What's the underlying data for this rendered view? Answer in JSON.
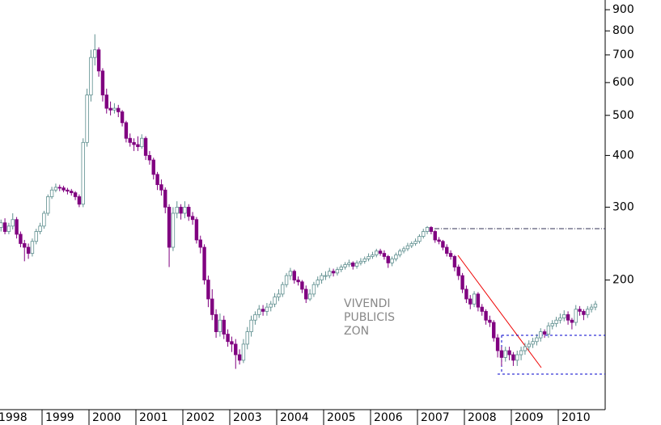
{
  "chart_data": {
    "type": "candlestick",
    "log_scale": true,
    "ylim": [
      99,
      950
    ],
    "yticks": [
      900,
      800,
      700,
      600,
      500,
      400,
      300,
      200
    ],
    "up_color": "#5f8f8f",
    "down_color": "#800080",
    "annotations": [
      "VIVENDI",
      "PUBLICIS",
      "ZON"
    ],
    "categories": [
      "1998",
      null,
      null,
      null,
      null,
      null,
      null,
      null,
      null,
      null,
      null,
      null,
      "1999",
      null,
      null,
      null,
      null,
      null,
      null,
      null,
      null,
      null,
      null,
      null,
      "2000",
      null,
      null,
      null,
      null,
      null,
      null,
      null,
      null,
      null,
      null,
      null,
      "2001",
      null,
      null,
      null,
      null,
      null,
      null,
      null,
      null,
      null,
      null,
      null,
      "2002",
      null,
      null,
      null,
      null,
      null,
      null,
      null,
      null,
      null,
      null,
      null,
      "2003",
      null,
      null,
      null,
      null,
      null,
      null,
      null,
      null,
      null,
      null,
      null,
      "2004",
      null,
      null,
      null,
      null,
      null,
      null,
      null,
      null,
      null,
      null,
      null,
      "2005",
      null,
      null,
      null,
      null,
      null,
      null,
      null,
      null,
      null,
      null,
      null,
      "2006",
      null,
      null,
      null,
      null,
      null,
      null,
      null,
      null,
      null,
      null,
      null,
      "2007",
      null,
      null,
      null,
      null,
      null,
      null,
      null,
      null,
      null,
      null,
      null,
      "2008",
      null,
      null,
      null,
      null,
      null,
      null,
      null,
      null,
      null,
      null,
      null,
      "2009",
      null,
      null,
      null,
      null,
      null,
      null,
      null,
      null,
      null,
      null,
      null,
      "2010",
      null,
      null,
      null,
      null,
      null,
      null,
      null,
      null,
      null
    ],
    "ohlc": [
      [
        265,
        285,
        260,
        268
      ],
      [
        268,
        280,
        262,
        275
      ],
      [
        275,
        282,
        258,
        262
      ],
      [
        262,
        275,
        258,
        270
      ],
      [
        270,
        290,
        265,
        280
      ],
      [
        280,
        284,
        252,
        258
      ],
      [
        258,
        262,
        240,
        245
      ],
      [
        245,
        250,
        222,
        240
      ],
      [
        240,
        245,
        225,
        232
      ],
      [
        232,
        252,
        228,
        248
      ],
      [
        248,
        266,
        244,
        262
      ],
      [
        262,
        275,
        258,
        270
      ],
      [
        270,
        294,
        266,
        290
      ],
      [
        290,
        322,
        286,
        318
      ],
      [
        318,
        336,
        314,
        330
      ],
      [
        330,
        342,
        326,
        335
      ],
      [
        335,
        340,
        328,
        334
      ],
      [
        334,
        338,
        326,
        330
      ],
      [
        330,
        334,
        322,
        328
      ],
      [
        328,
        332,
        320,
        325
      ],
      [
        325,
        328,
        312,
        318
      ],
      [
        318,
        322,
        300,
        305
      ],
      [
        305,
        440,
        300,
        430
      ],
      [
        430,
        580,
        420,
        560
      ],
      [
        560,
        720,
        540,
        690
      ],
      [
        690,
        785,
        660,
        720
      ],
      [
        720,
        730,
        620,
        640
      ],
      [
        640,
        650,
        540,
        560
      ],
      [
        560,
        580,
        505,
        520
      ],
      [
        520,
        540,
        500,
        515
      ],
      [
        515,
        535,
        505,
        520
      ],
      [
        520,
        530,
        495,
        510
      ],
      [
        510,
        515,
        470,
        480
      ],
      [
        480,
        485,
        430,
        440
      ],
      [
        440,
        452,
        420,
        430
      ],
      [
        430,
        440,
        410,
        425
      ],
      [
        425,
        445,
        410,
        420
      ],
      [
        420,
        450,
        415,
        440
      ],
      [
        440,
        445,
        390,
        400
      ],
      [
        400,
        410,
        380,
        390
      ],
      [
        390,
        395,
        350,
        360
      ],
      [
        360,
        365,
        330,
        340
      ],
      [
        340,
        350,
        320,
        330
      ],
      [
        330,
        335,
        290,
        300
      ],
      [
        300,
        305,
        215,
        240
      ],
      [
        240,
        300,
        235,
        290
      ],
      [
        290,
        310,
        282,
        300
      ],
      [
        300,
        305,
        280,
        290
      ],
      [
        290,
        310,
        282,
        300
      ],
      [
        300,
        305,
        278,
        285
      ],
      [
        285,
        292,
        272,
        280
      ],
      [
        280,
        284,
        245,
        250
      ],
      [
        250,
        256,
        232,
        240
      ],
      [
        240,
        244,
        195,
        200
      ],
      [
        200,
        205,
        172,
        180
      ],
      [
        180,
        190,
        160,
        165
      ],
      [
        165,
        170,
        145,
        150
      ],
      [
        150,
        166,
        146,
        160
      ],
      [
        160,
        164,
        144,
        148
      ],
      [
        148,
        152,
        138,
        142
      ],
      [
        142,
        146,
        134,
        140
      ],
      [
        140,
        144,
        122,
        132
      ],
      [
        132,
        136,
        125,
        128
      ],
      [
        128,
        144,
        126,
        140
      ],
      [
        140,
        154,
        136,
        150
      ],
      [
        150,
        164,
        146,
        160
      ],
      [
        160,
        168,
        156,
        165
      ],
      [
        165,
        174,
        162,
        170
      ],
      [
        170,
        174,
        164,
        168
      ],
      [
        168,
        176,
        164,
        172
      ],
      [
        172,
        178,
        168,
        175
      ],
      [
        175,
        186,
        172,
        182
      ],
      [
        182,
        190,
        178,
        185
      ],
      [
        185,
        198,
        182,
        195
      ],
      [
        195,
        208,
        192,
        205
      ],
      [
        205,
        214,
        200,
        210
      ],
      [
        210,
        212,
        196,
        200
      ],
      [
        200,
        204,
        194,
        198
      ],
      [
        198,
        200,
        186,
        190
      ],
      [
        190,
        194,
        176,
        180
      ],
      [
        180,
        190,
        178,
        185
      ],
      [
        185,
        198,
        182,
        195
      ],
      [
        195,
        204,
        192,
        200
      ],
      [
        200,
        208,
        196,
        205
      ],
      [
        205,
        210,
        200,
        205
      ],
      [
        205,
        214,
        202,
        210
      ],
      [
        210,
        213,
        204,
        208
      ],
      [
        208,
        215,
        205,
        212
      ],
      [
        212,
        218,
        209,
        215
      ],
      [
        215,
        221,
        212,
        218
      ],
      [
        218,
        224,
        215,
        220
      ],
      [
        220,
        222,
        212,
        216
      ],
      [
        216,
        223,
        213,
        220
      ],
      [
        220,
        226,
        217,
        222
      ],
      [
        222,
        228,
        219,
        225
      ],
      [
        225,
        232,
        222,
        228
      ],
      [
        228,
        234,
        225,
        230
      ],
      [
        230,
        238,
        227,
        235
      ],
      [
        235,
        238,
        229,
        232
      ],
      [
        232,
        236,
        224,
        228
      ],
      [
        228,
        230,
        214,
        220
      ],
      [
        220,
        228,
        216,
        225
      ],
      [
        225,
        233,
        222,
        230
      ],
      [
        230,
        238,
        227,
        235
      ],
      [
        235,
        241,
        232,
        238
      ],
      [
        238,
        246,
        235,
        242
      ],
      [
        242,
        248,
        239,
        245
      ],
      [
        245,
        252,
        242,
        248
      ],
      [
        248,
        258,
        245,
        255
      ],
      [
        255,
        266,
        252,
        262
      ],
      [
        262,
        270,
        258,
        268
      ],
      [
        268,
        270,
        258,
        262
      ],
      [
        262,
        264,
        246,
        250
      ],
      [
        250,
        254,
        244,
        248
      ],
      [
        248,
        250,
        236,
        240
      ],
      [
        240,
        244,
        228,
        232
      ],
      [
        232,
        236,
        224,
        228
      ],
      [
        228,
        230,
        210,
        215
      ],
      [
        215,
        218,
        200,
        205
      ],
      [
        205,
        208,
        186,
        190
      ],
      [
        190,
        194,
        176,
        180
      ],
      [
        180,
        184,
        170,
        175
      ],
      [
        175,
        188,
        172,
        185
      ],
      [
        185,
        187,
        168,
        172
      ],
      [
        172,
        175,
        164,
        168
      ],
      [
        168,
        170,
        156,
        160
      ],
      [
        160,
        164,
        154,
        158
      ],
      [
        158,
        160,
        142,
        145
      ],
      [
        145,
        148,
        130,
        135
      ],
      [
        135,
        138,
        124,
        130
      ],
      [
        130,
        138,
        127,
        135
      ],
      [
        135,
        138,
        128,
        132
      ],
      [
        132,
        134,
        124,
        128
      ],
      [
        128,
        135,
        124,
        132
      ],
      [
        132,
        138,
        128,
        135
      ],
      [
        135,
        141,
        132,
        138
      ],
      [
        138,
        143,
        135,
        140
      ],
      [
        140,
        145,
        137,
        142
      ],
      [
        142,
        148,
        139,
        145
      ],
      [
        145,
        153,
        142,
        150
      ],
      [
        150,
        152,
        145,
        148
      ],
      [
        148,
        158,
        145,
        155
      ],
      [
        155,
        160,
        152,
        157
      ],
      [
        157,
        163,
        154,
        160
      ],
      [
        160,
        166,
        157,
        162
      ],
      [
        162,
        169,
        159,
        165
      ],
      [
        165,
        168,
        156,
        160
      ],
      [
        160,
        162,
        152,
        158
      ],
      [
        158,
        174,
        155,
        170
      ],
      [
        170,
        173,
        164,
        168
      ],
      [
        168,
        170,
        160,
        165
      ],
      [
        165,
        173,
        162,
        170
      ],
      [
        170,
        175,
        167,
        172
      ],
      [
        172,
        178,
        169,
        175
      ]
    ]
  }
}
